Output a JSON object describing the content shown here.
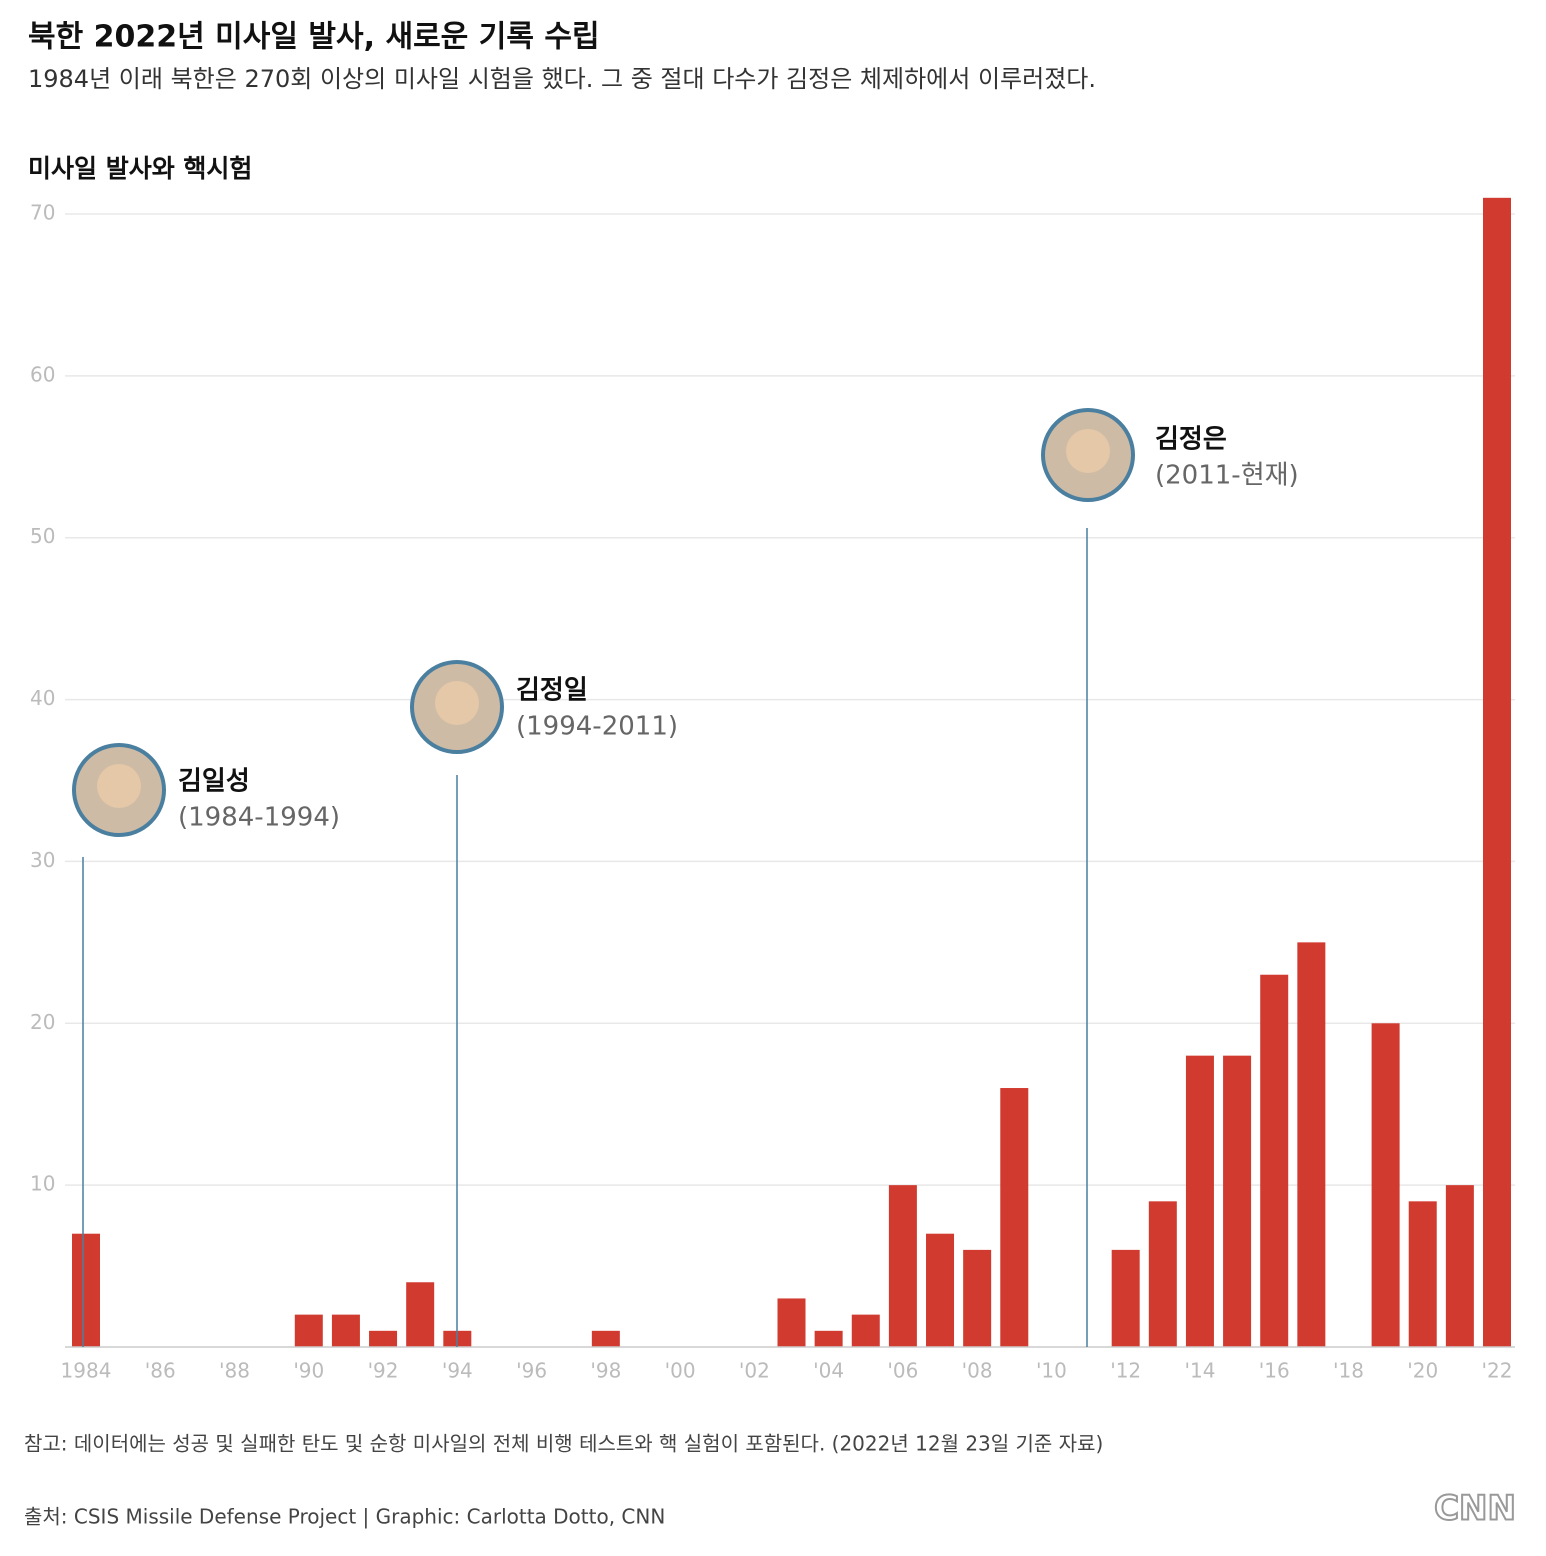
{
  "chart_data": {
    "type": "bar",
    "title": "북한 2022년 미사일 발사, 새로운 기록 수립",
    "subtitle": "1984년 이래 북한은 270회 이상의 미사일 시험을 했다. 그 중 절대 다수가 김정은 체제하에서 이루러졌다.",
    "y_label": "미사일 발사와 핵시험",
    "categories": [
      "1984",
      null,
      "'86",
      null,
      "'88",
      null,
      "'90",
      null,
      "'92",
      null,
      "'94",
      null,
      "'96",
      null,
      "'98",
      null,
      "'00",
      null,
      "'02",
      null,
      "'04",
      null,
      "'06",
      null,
      "'08",
      null,
      "'10",
      null,
      "'12",
      null,
      "'14",
      null,
      "'16",
      null,
      "'18",
      null,
      "'20",
      null,
      "'22"
    ],
    "values": [
      7,
      0,
      0,
      0,
      0,
      0,
      2,
      2,
      1,
      4,
      1,
      0,
      0,
      0,
      1,
      0,
      0,
      0,
      0,
      3,
      1,
      2,
      10,
      7,
      6,
      16,
      0,
      0,
      6,
      9,
      18,
      18,
      23,
      25,
      0,
      20,
      9,
      10,
      71
    ],
    "color": "#d13a2f",
    "ylim": [
      0,
      71
    ],
    "yticks": [
      10,
      20,
      30,
      40,
      50,
      60,
      70
    ],
    "grid": true,
    "annotations": [
      {
        "name": "김일성",
        "period": "(1984-1994)"
      },
      {
        "name": "김정일",
        "period": "(1994-2011)"
      },
      {
        "name": "김정은",
        "period": "(2011-현재)"
      }
    ],
    "note": "참고: 데이터에는 성공 및 실패한 탄도 및 순항 미사일의 전체 비행 테스트와 핵 실험이 포함된다. (2022년 12월 23일 기준 자료)",
    "source": "출처: CSIS Missile Defense Project | Graphic: Carlotta Dotto, CNN",
    "logo": "CNN"
  }
}
